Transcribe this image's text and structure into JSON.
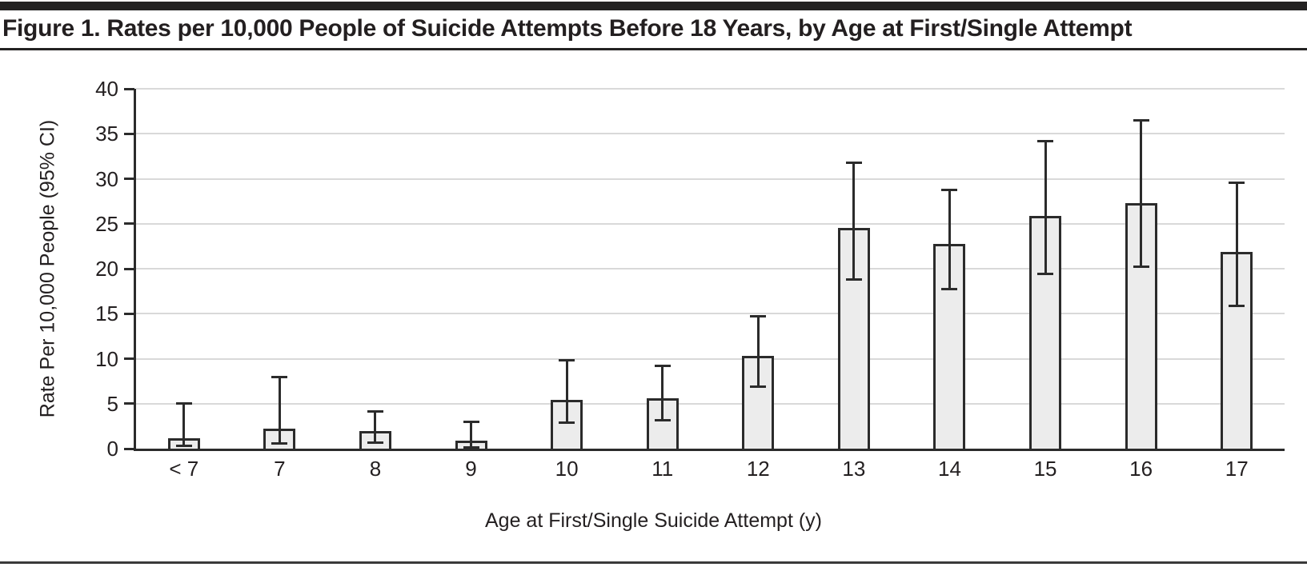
{
  "colors": {
    "bar_fill": "#ececec",
    "line": "#2b2b2b",
    "grid": "#d9d9d9",
    "text": "#231f20",
    "rule_dark": "#232222",
    "rule_gray": "#3a3a3a"
  },
  "chart_data": {
    "type": "bar",
    "title": "Figure 1. Rates per 10,000 People of Suicide Attempts Before 18 Years, by Age at First/Single Attempt",
    "xlabel": "Age at First/Single Suicide Attempt (y)",
    "ylabel": "Rate Per 10,000 People (95% CI)",
    "categories": [
      "< 7",
      "7",
      "8",
      "9",
      "10",
      "11",
      "12",
      "13",
      "14",
      "15",
      "16",
      "17"
    ],
    "values": [
      1.2,
      2.2,
      2.0,
      0.9,
      5.4,
      5.6,
      10.3,
      24.5,
      22.8,
      25.9,
      27.3,
      21.9
    ],
    "ci_low": [
      0.3,
      0.6,
      0.7,
      0.1,
      2.9,
      3.2,
      6.9,
      18.8,
      17.7,
      19.4,
      20.2,
      15.9
    ],
    "ci_high": [
      5.0,
      8.0,
      4.1,
      3.0,
      9.8,
      9.2,
      14.7,
      31.8,
      28.8,
      34.2,
      36.5,
      29.6
    ],
    "error_bars": "95% CI",
    "ylim": [
      0,
      40
    ],
    "yticks": [
      0,
      5,
      10,
      15,
      20,
      25,
      30,
      35,
      40
    ],
    "grid": true,
    "legend": "none"
  }
}
